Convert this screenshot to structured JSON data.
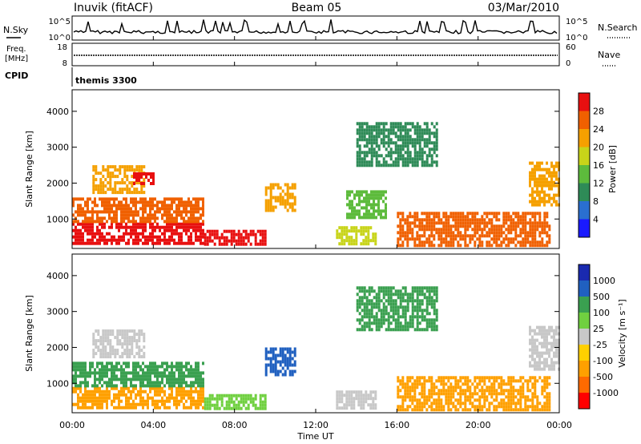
{
  "header": {
    "station": "Inuvik (fitACF)",
    "beam": "Beam 05",
    "date": "03/Mar/2010"
  },
  "status_panels": {
    "nsky": {
      "label": "N.Sky",
      "tick_top": "10^5",
      "tick_bottom": "10^0"
    },
    "nsearch": {
      "label": "N.Search",
      "tick_top": "10^5",
      "tick_bottom": "10^0"
    },
    "freq": {
      "label_1": "Freq.",
      "label_2": "[MHz]",
      "tick_top": "18",
      "tick_bottom": "8"
    },
    "nave": {
      "label": "Nave",
      "tick_top": "60",
      "tick_bottom": "0"
    },
    "cpid": {
      "label": "CPID",
      "value": "themis 3300"
    }
  },
  "colors": {
    "power": [
      "#1a1aff",
      "#2a6fd0",
      "#2e8b57",
      "#5dbb3c",
      "#c8d419",
      "#f5a000",
      "#f06000",
      "#e81010"
    ],
    "velocity": [
      "#ff0000",
      "#ff6a00",
      "#ffa000",
      "#ffd000",
      "#c8c8c8",
      "#70d040",
      "#3aa050",
      "#2060c0",
      "#1a2ab0"
    ]
  },
  "chart_data": [
    {
      "type": "heatmap",
      "name": "power",
      "ylabel": "Slant Range [km]",
      "ylim": [
        180,
        4600
      ],
      "yticks": [
        1000,
        2000,
        3000,
        4000
      ],
      "colorbar_label": "Power [dB]",
      "colorbar_ticks": [
        "4",
        "8",
        "12",
        "16",
        "20",
        "24",
        "28"
      ],
      "clim": [
        0,
        30
      ],
      "regions": [
        {
          "x": [
            0.0,
            6.5
          ],
          "y": [
            300,
            900
          ],
          "level": 29
        },
        {
          "x": [
            0.0,
            6.5
          ],
          "y": [
            900,
            1600
          ],
          "level": 24
        },
        {
          "x": [
            1.0,
            3.5
          ],
          "y": [
            1700,
            2500
          ],
          "level": 22
        },
        {
          "x": [
            3.0,
            4.0
          ],
          "y": [
            2000,
            2300
          ],
          "level": 27
        },
        {
          "x": [
            6.5,
            9.5
          ],
          "y": [
            300,
            700
          ],
          "level": 28
        },
        {
          "x": [
            9.5,
            11.0
          ],
          "y": [
            1200,
            2000
          ],
          "level": 22
        },
        {
          "x": [
            13.0,
            15.0
          ],
          "y": [
            300,
            800
          ],
          "level": 18
        },
        {
          "x": [
            13.5,
            15.5
          ],
          "y": [
            1000,
            1800
          ],
          "level": 12
        },
        {
          "x": [
            16.0,
            23.5
          ],
          "y": [
            300,
            1200
          ],
          "level": 26
        },
        {
          "x": [
            22.5,
            24.0
          ],
          "y": [
            1400,
            2600
          ],
          "level": 20
        },
        {
          "x": [
            14.0,
            18.0
          ],
          "y": [
            2500,
            3700
          ],
          "level": 10
        }
      ]
    },
    {
      "type": "heatmap",
      "name": "velocity",
      "xlabel": "Time UT",
      "xticks": [
        "00:00",
        "04:00",
        "08:00",
        "12:00",
        "16:00",
        "20:00",
        "00:00"
      ],
      "ylabel": "Slant Range [km]",
      "ylim": [
        180,
        4600
      ],
      "yticks": [
        1000,
        2000,
        3000,
        4000
      ],
      "colorbar_label": "Velocity [m s⁻¹]",
      "colorbar_ticks": [
        "1000",
        "500",
        "100",
        "25",
        "-25",
        "-100",
        "-500",
        "-1000"
      ],
      "regions": [
        {
          "x": [
            0.0,
            6.5
          ],
          "y": [
            300,
            900
          ],
          "level": -150
        },
        {
          "x": [
            0.0,
            6.5
          ],
          "y": [
            900,
            1600
          ],
          "level": 120
        },
        {
          "x": [
            1.0,
            3.5
          ],
          "y": [
            1700,
            2500
          ],
          "level": 0
        },
        {
          "x": [
            6.5,
            9.5
          ],
          "y": [
            300,
            700
          ],
          "level": 50
        },
        {
          "x": [
            9.5,
            11.0
          ],
          "y": [
            1200,
            2000
          ],
          "level": 600
        },
        {
          "x": [
            13.0,
            15.0
          ],
          "y": [
            300,
            800
          ],
          "level": 0
        },
        {
          "x": [
            16.0,
            23.5
          ],
          "y": [
            300,
            1200
          ],
          "level": -200
        },
        {
          "x": [
            22.5,
            24.0
          ],
          "y": [
            1400,
            2600
          ],
          "level": 0
        },
        {
          "x": [
            14.0,
            18.0
          ],
          "y": [
            2500,
            3700
          ],
          "level": 300
        }
      ]
    }
  ]
}
